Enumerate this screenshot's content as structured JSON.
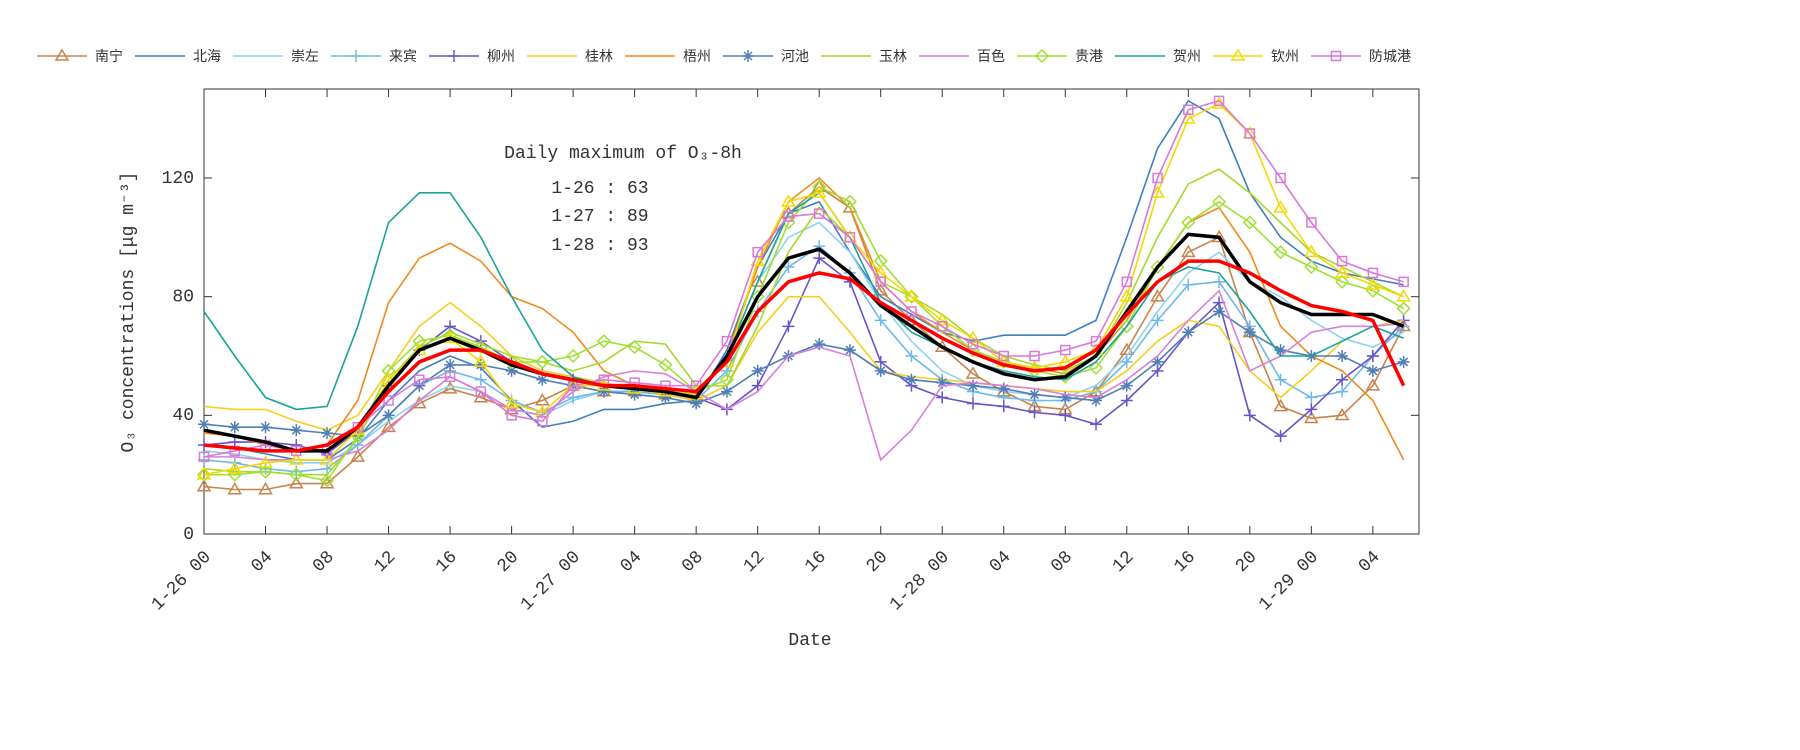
{
  "chart_data": {
    "type": "line",
    "xlabel": "Date",
    "ylabel": "O₃ concentrations [μg m⁻³]",
    "annotations": [
      "Daily maximum of O₃-8h",
      "1-26 : 63",
      "1-27 : 89",
      "1-28 : 93"
    ],
    "x": [
      0,
      2,
      4,
      6,
      8,
      10,
      12,
      14,
      16,
      18,
      20,
      22,
      24,
      26,
      28,
      30,
      32,
      34,
      36,
      38,
      40,
      42,
      44,
      46,
      48,
      50,
      52,
      54,
      56,
      58,
      60,
      62,
      64,
      66,
      68,
      70,
      72,
      74,
      76,
      78
    ],
    "xlim": [
      0,
      79
    ],
    "xticks": [
      {
        "value": 0,
        "label": "1-26 00"
      },
      {
        "value": 4,
        "label": "04"
      },
      {
        "value": 8,
        "label": "08"
      },
      {
        "value": 12,
        "label": "12"
      },
      {
        "value": 16,
        "label": "16"
      },
      {
        "value": 20,
        "label": "20"
      },
      {
        "value": 24,
        "label": "1-27 00"
      },
      {
        "value": 28,
        "label": "04"
      },
      {
        "value": 32,
        "label": "08"
      },
      {
        "value": 36,
        "label": "12"
      },
      {
        "value": 40,
        "label": "16"
      },
      {
        "value": 44,
        "label": "20"
      },
      {
        "value": 48,
        "label": "1-28 00"
      },
      {
        "value": 52,
        "label": "04"
      },
      {
        "value": 56,
        "label": "08"
      },
      {
        "value": 60,
        "label": "12"
      },
      {
        "value": 64,
        "label": "16"
      },
      {
        "value": 68,
        "label": "20"
      },
      {
        "value": 72,
        "label": "1-29 00"
      },
      {
        "value": 76,
        "label": "04"
      }
    ],
    "ylim": [
      0,
      150
    ],
    "yticks": [
      0,
      40,
      80,
      120
    ],
    "series": [
      {
        "name": "南宁",
        "color": "#c8834a",
        "marker": "triangle",
        "values": [
          16,
          15,
          15,
          17,
          17,
          26,
          36,
          44,
          49,
          46,
          42,
          45,
          50,
          48,
          48,
          47,
          46,
          60,
          85,
          108,
          117,
          110,
          82,
          72,
          63,
          54,
          48,
          43,
          42,
          48,
          62,
          80,
          95,
          100,
          68,
          43,
          39,
          40,
          50,
          70
        ]
      },
      {
        "name": "北海",
        "color": "#3f7fbf",
        "values": [
          30,
          29,
          27,
          25,
          25,
          32,
          45,
          55,
          60,
          56,
          45,
          36,
          38,
          42,
          42,
          44,
          45,
          62,
          90,
          108,
          112,
          95,
          80,
          74,
          68,
          65,
          67,
          67,
          67,
          72,
          100,
          130,
          146,
          140,
          115,
          100,
          92,
          88,
          86,
          84
        ]
      },
      {
        "name": "崇左",
        "color": "#8dd3f0",
        "values": [
          28,
          27,
          25,
          24,
          24,
          30,
          38,
          45,
          50,
          48,
          42,
          40,
          45,
          48,
          48,
          47,
          46,
          60,
          85,
          100,
          105,
          95,
          78,
          65,
          55,
          50,
          48,
          47,
          46,
          50,
          60,
          75,
          88,
          95,
          85,
          80,
          72,
          66,
          63,
          68
        ]
      },
      {
        "name": "来宾",
        "color": "#6fb8ea",
        "marker": "plus",
        "values": [
          25,
          24,
          22,
          21,
          22,
          30,
          40,
          50,
          55,
          52,
          45,
          41,
          46,
          48,
          48,
          47,
          45,
          55,
          75,
          90,
          97,
          88,
          72,
          60,
          52,
          48,
          46,
          45,
          45,
          48,
          58,
          72,
          84,
          85,
          70,
          52,
          46,
          48,
          60,
          70
        ]
      },
      {
        "name": "柳州",
        "color": "#6a52c9",
        "marker": "plus",
        "values": [
          30,
          31,
          31,
          30,
          27,
          35,
          50,
          62,
          70,
          65,
          58,
          54,
          52,
          50,
          49,
          48,
          46,
          42,
          50,
          70,
          93,
          85,
          58,
          50,
          46,
          44,
          43,
          41,
          40,
          37,
          45,
          55,
          68,
          78,
          40,
          33,
          42,
          52,
          60,
          72
        ]
      },
      {
        "name": "桂林",
        "color": "#f5cf1f",
        "values": [
          43,
          42,
          42,
          38,
          35,
          40,
          55,
          70,
          78,
          70,
          60,
          55,
          53,
          51,
          49,
          47,
          45,
          50,
          68,
          80,
          80,
          68,
          55,
          53,
          52,
          51,
          50,
          49,
          48,
          48,
          55,
          65,
          72,
          70,
          55,
          46,
          55,
          65,
          70,
          72
        ]
      },
      {
        "name": "梧州",
        "color": "#f08a1a",
        "values": [
          34,
          33,
          30,
          28,
          30,
          45,
          78,
          93,
          98,
          92,
          80,
          76,
          68,
          55,
          50,
          48,
          47,
          60,
          90,
          112,
          120,
          110,
          85,
          75,
          68,
          62,
          58,
          56,
          54,
          60,
          72,
          90,
          105,
          110,
          95,
          70,
          60,
          55,
          45,
          25
        ]
      },
      {
        "name": "河池",
        "color": "#4f7fb5",
        "marker": "asterisk",
        "values": [
          37,
          36,
          36,
          35,
          34,
          33,
          40,
          50,
          57,
          57,
          55,
          52,
          50,
          48,
          47,
          46,
          44,
          48,
          55,
          60,
          64,
          62,
          55,
          52,
          51,
          50,
          49,
          47,
          46,
          45,
          50,
          58,
          68,
          75,
          68,
          62,
          60,
          60,
          55,
          58
        ]
      },
      {
        "name": "玉林",
        "color": "#a8d82c",
        "values": [
          22,
          21,
          21,
          20,
          20,
          32,
          52,
          63,
          68,
          64,
          60,
          58,
          55,
          58,
          65,
          64,
          50,
          50,
          70,
          95,
          110,
          100,
          85,
          80,
          74,
          66,
          60,
          57,
          55,
          60,
          78,
          100,
          118,
          123,
          115,
          105,
          95,
          90,
          85,
          80
        ]
      },
      {
        "name": "百色",
        "color": "#d97fd8",
        "values": [
          26,
          26,
          25,
          25,
          25,
          28,
          35,
          45,
          53,
          48,
          42,
          40,
          48,
          53,
          55,
          54,
          48,
          42,
          48,
          60,
          63,
          60,
          25,
          35,
          50,
          51,
          50,
          49,
          47,
          46,
          52,
          60,
          72,
          82,
          55,
          60,
          68,
          70,
          70,
          71
        ]
      },
      {
        "name": "贵港",
        "color": "#9fe033",
        "marker": "diamond",
        "values": [
          20,
          20,
          21,
          20,
          18,
          33,
          55,
          65,
          67,
          63,
          58,
          58,
          60,
          65,
          63,
          57,
          48,
          52,
          80,
          105,
          117,
          112,
          92,
          80,
          70,
          62,
          58,
          55,
          53,
          56,
          70,
          90,
          105,
          112,
          105,
          95,
          90,
          85,
          82,
          76
        ]
      },
      {
        "name": "贺州",
        "color": "#1aa39a",
        "values": [
          75,
          60,
          46,
          42,
          43,
          70,
          105,
          115,
          115,
          100,
          80,
          62,
          53,
          50,
          49,
          48,
          47,
          60,
          85,
          108,
          115,
          100,
          78,
          68,
          63,
          58,
          55,
          53,
          52,
          58,
          70,
          85,
          90,
          88,
          75,
          60,
          60,
          65,
          70,
          66
        ]
      },
      {
        "name": "钦州",
        "color": "#f5d800",
        "marker": "triangle",
        "values": [
          20,
          22,
          24,
          25,
          25,
          35,
          52,
          62,
          66,
          58,
          44,
          41,
          50,
          50,
          49,
          48,
          47,
          58,
          92,
          112,
          115,
          100,
          88,
          80,
          72,
          66,
          58,
          56,
          58,
          62,
          80,
          115,
          140,
          145,
          135,
          110,
          95,
          88,
          84,
          80
        ]
      },
      {
        "name": "防城港",
        "color": "#d979d9",
        "marker": "square",
        "values": [
          26,
          28,
          30,
          28,
          28,
          36,
          45,
          52,
          53,
          48,
          40,
          38,
          50,
          52,
          51,
          50,
          50,
          65,
          95,
          107,
          108,
          100,
          85,
          75,
          70,
          64,
          60,
          60,
          62,
          65,
          85,
          120,
          143,
          146,
          135,
          120,
          105,
          92,
          88,
          85
        ]
      },
      {
        "color": "#000000",
        "width": 3.5,
        "values": [
          35,
          33,
          31,
          28,
          28,
          36,
          50,
          62,
          66,
          62,
          57,
          54,
          52,
          50,
          49,
          48,
          46,
          60,
          80,
          93,
          96,
          88,
          77,
          70,
          63,
          58,
          54,
          52,
          53,
          60,
          75,
          90,
          101,
          100,
          85,
          78,
          74,
          74,
          74,
          70
        ]
      },
      {
        "color": "#ff0000",
        "width": 3.5,
        "values": [
          30,
          29,
          28,
          28,
          30,
          36,
          48,
          58,
          62,
          62,
          58,
          54,
          52,
          50,
          50,
          49,
          48,
          58,
          75,
          85,
          88,
          86,
          78,
          72,
          66,
          61,
          57,
          55,
          56,
          62,
          74,
          85,
          92,
          92,
          88,
          82,
          77,
          75,
          72,
          50
        ]
      }
    ]
  }
}
